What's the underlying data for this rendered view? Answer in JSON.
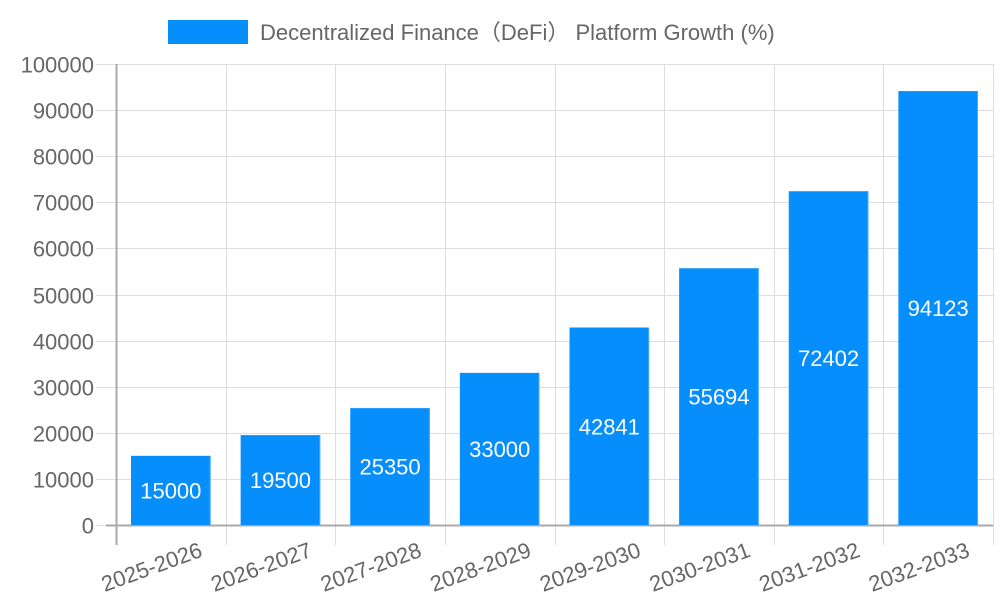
{
  "chart_data": {
    "type": "bar",
    "title": "",
    "xlabel": "",
    "ylabel": "",
    "legend": {
      "position": "top",
      "entries": [
        {
          "label": "Decentralized Finance（DeFi） Platform Growth (%)",
          "color": "#068efc"
        }
      ]
    },
    "categories": [
      "2025-2026",
      "2026-2027",
      "2027-2028",
      "2028-2029",
      "2029-2030",
      "2030-2031",
      "2031-2032",
      "2032-2033"
    ],
    "series": [
      {
        "name": "Decentralized Finance（DeFi） Platform Growth (%)",
        "values": [
          15000,
          19500,
          25350,
          33000,
          42841,
          55694,
          72402,
          94123
        ],
        "color": "#068efc"
      }
    ],
    "data_labels": [
      "15000",
      "19500",
      "25350",
      "33000",
      "42841",
      "55694",
      "72402",
      "94123"
    ],
    "ylim": [
      0,
      100000
    ],
    "yticks": [
      0,
      10000,
      20000,
      30000,
      40000,
      50000,
      60000,
      70000,
      80000,
      90000,
      100000
    ],
    "ytick_labels": [
      "0",
      "10000",
      "20000",
      "30000",
      "40000",
      "50000",
      "60000",
      "70000",
      "80000",
      "90000",
      "100000"
    ],
    "grid": true,
    "x_tick_rotation": -20
  },
  "colors": {
    "bar": "#068efc",
    "bar_edge": "#4aa8f5",
    "grid": "#dddddd",
    "axis": "#aaaaaa",
    "text": "#666666",
    "label": "#ffffff"
  }
}
